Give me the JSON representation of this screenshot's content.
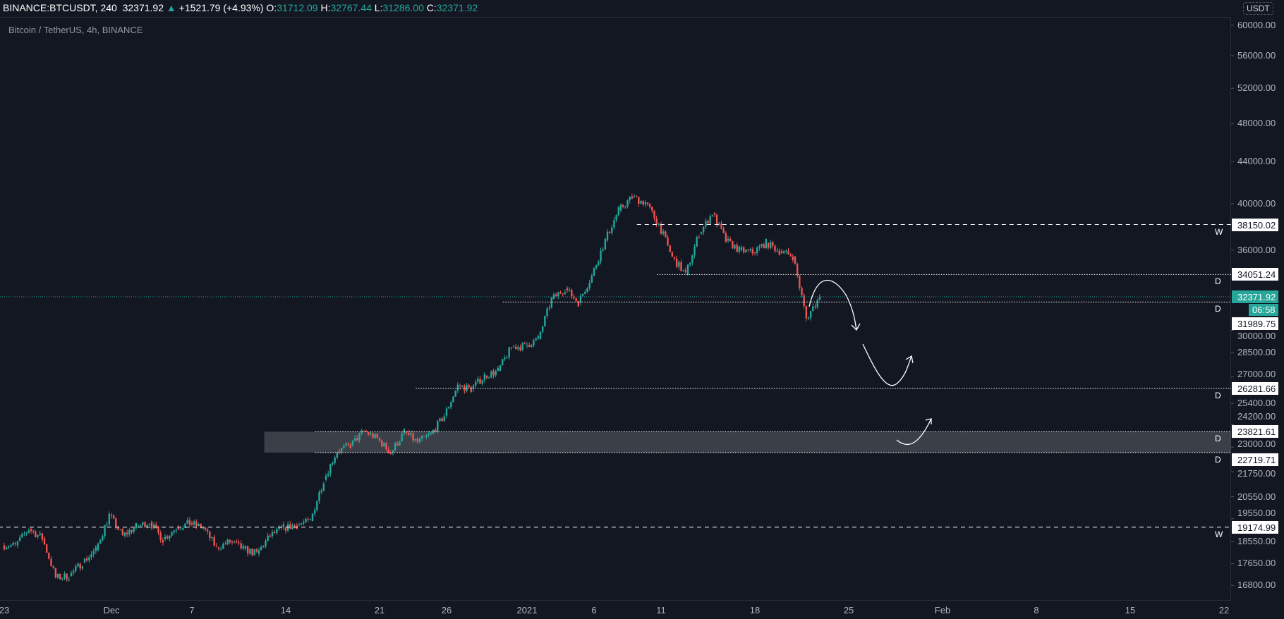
{
  "header": {
    "symbol": "BINANCE:BTCUSDT, 240",
    "last": "32371.92",
    "arrow": "▲",
    "change": "+1521.79 (+4.93%)",
    "o_label": "O:",
    "o": "31712.09",
    "h_label": "H:",
    "h": "32767.44",
    "l_label": "L:",
    "l": "31286.00",
    "c_label": "C:",
    "c": "32371.92"
  },
  "legend": "Bitcoin / TetherUS, 4h, BINANCE",
  "currency_badge": "USDT",
  "colors": {
    "up": "#26a69a",
    "down": "#ef5350",
    "bg": "#131722"
  },
  "chart_data": {
    "type": "candlestick",
    "scale": "log",
    "timeframe": "4h",
    "y_ticks": [
      "60000.00",
      "56000.00",
      "52000.00",
      "48000.00",
      "44000.00",
      "40000.00",
      "36000.00",
      "30000.00",
      "28500.00",
      "27000.00",
      "25400.00",
      "24200.00",
      "23000.00",
      "21750.00",
      "20550.00",
      "19550.00",
      "18550.00",
      "17650.00",
      "16800.00"
    ],
    "x_ticks": [
      "23",
      "Dec",
      "7",
      "14",
      "21",
      "26",
      "2021",
      "6",
      "11",
      "18",
      "25",
      "Feb",
      "8",
      "15",
      "22"
    ],
    "x_tick_days": [
      0,
      8,
      14,
      21,
      28,
      33,
      39,
      44,
      49,
      56,
      63,
      70,
      77,
      84,
      91
    ],
    "start_open": 18400,
    "daily_closes": [
      18400,
      19100,
      18700,
      17100,
      17150,
      17700,
      18200,
      19700,
      18800,
      19200,
      19400,
      18650,
      19150,
      19350,
      19150,
      18300,
      18550,
      18250,
      18050,
      18800,
      19150,
      19270,
      19440,
      21350,
      22800,
      23100,
      23850,
      23450,
      22700,
      23800,
      23250,
      23700,
      24700,
      26450,
      26250,
      27050,
      27350,
      28870,
      28950,
      29400,
      32200,
      33000,
      31950,
      33950,
      36800,
      39400,
      40600,
      40100,
      38150,
      35400,
      34050,
      37350,
      39150,
      36770,
      36000,
      35800,
      36600,
      35900,
      35500,
      30800,
      32371.92
    ],
    "current_price": 32371.92,
    "countdown": "06:58",
    "levels": [
      {
        "price": 38150.02,
        "label": "38150.02",
        "tf": "W",
        "style": "dashed",
        "from_day": 47.2
      },
      {
        "price": 34051.24,
        "label": "34051.24",
        "tf": "D",
        "style": "dotted",
        "from_day": 48.7
      },
      {
        "price": 31989.75,
        "label": "31989.75",
        "tf": "D",
        "style": "dotted",
        "from_day": 37.2
      },
      {
        "price": 26281.66,
        "label": "26281.66",
        "tf": "D",
        "style": "dotted",
        "from_day": 30.7
      },
      {
        "price": 23821.61,
        "label": "23821.61",
        "tf": "D",
        "style": "dotted",
        "from_day": 23.2
      },
      {
        "price": 22719.71,
        "label": "22719.71",
        "tf": "D",
        "style": "dotted",
        "from_day": 23.2
      },
      {
        "price": 19174.99,
        "label": "19174.99",
        "tf": "W",
        "style": "dashed",
        "from_day": -1
      }
    ],
    "zone": {
      "top": 23821.61,
      "bottom": 22719.71,
      "from_day": 19.4
    }
  }
}
